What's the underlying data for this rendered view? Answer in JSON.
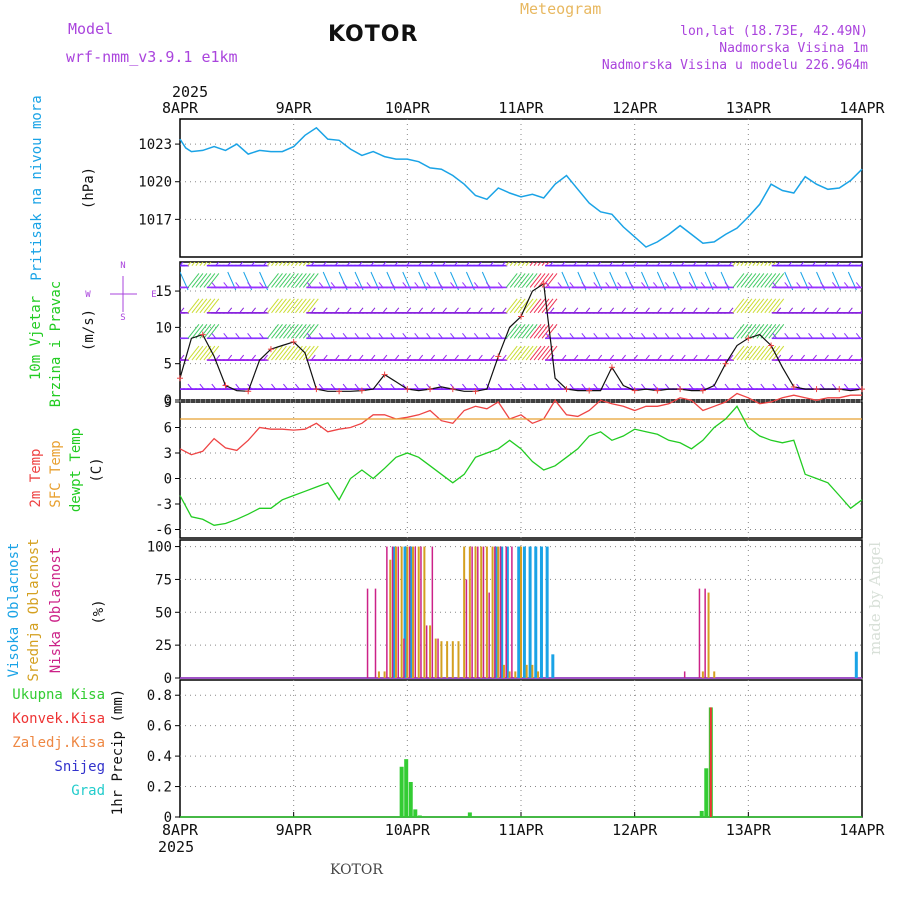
{
  "header": {
    "model_label": "Model",
    "model_name": "wrf-nmm_v3.9.1 e1km",
    "title": "KOTOR",
    "subtitle": "Meteogram",
    "coords": "lon,lat (18.73E, 42.49N)",
    "elev": "Nadmorska Visina 1m",
    "elev_model": "Nadmorska Visina u modelu 226.964m",
    "watermark": "made by Angel",
    "footer": "KOTOR",
    "year": "2025"
  },
  "colors": {
    "pressure": "#1aa3e6",
    "wind_label": "#22cc22",
    "t2m": "#ee4444",
    "tsfc": "#e8a030",
    "tdew": "#22cc22",
    "cloud_high": "#1aa3e6",
    "cloud_mid": "#d4a020",
    "cloud_low": "#cc2288",
    "precip_total": "#33cc33",
    "precip_conv": "#ee3333",
    "precip_frz": "#ee8844",
    "precip_snow": "#3333cc",
    "precip_grad": "#22cccc",
    "header_purple": "#aa44dd"
  },
  "chart_data": [
    {
      "type": "line",
      "name": "pressure",
      "ylabel": [
        "Pritisak na nivou mora",
        "(hPa)"
      ],
      "x_unit": "days since 8APR 00Z",
      "ylim": [
        1014,
        1025
      ],
      "yticks": [
        1017,
        1020,
        1023
      ],
      "x": [
        0,
        0.05,
        0.1,
        0.2,
        0.3,
        0.4,
        0.5,
        0.6,
        0.7,
        0.8,
        0.9,
        1.0,
        1.1,
        1.2,
        1.3,
        1.4,
        1.5,
        1.6,
        1.7,
        1.8,
        1.9,
        2.0,
        2.1,
        2.2,
        2.3,
        2.4,
        2.5,
        2.6,
        2.7,
        2.8,
        2.9,
        3.0,
        3.1,
        3.2,
        3.3,
        3.4,
        3.5,
        3.6,
        3.7,
        3.8,
        3.9,
        4.0,
        4.1,
        4.2,
        4.3,
        4.4,
        4.5,
        4.6,
        4.7,
        4.8,
        4.9,
        5.0,
        5.1,
        5.2,
        5.3,
        5.4,
        5.5,
        5.6,
        5.7,
        5.8,
        5.9,
        6.0
      ],
      "values": [
        1023.4,
        1022.7,
        1022.4,
        1022.5,
        1022.8,
        1022.5,
        1023.0,
        1022.2,
        1022.5,
        1022.4,
        1022.4,
        1022.8,
        1023.7,
        1024.3,
        1023.4,
        1023.3,
        1022.6,
        1022.1,
        1022.4,
        1022.0,
        1021.8,
        1021.8,
        1021.6,
        1021.1,
        1021.0,
        1020.5,
        1019.8,
        1018.9,
        1018.6,
        1019.5,
        1019.1,
        1018.8,
        1019.0,
        1018.7,
        1019.8,
        1020.5,
        1019.4,
        1018.3,
        1017.6,
        1017.4,
        1016.4,
        1015.6,
        1014.8,
        1015.2,
        1015.8,
        1016.5,
        1015.8,
        1015.1,
        1015.2,
        1015.8,
        1016.3,
        1017.2,
        1018.2,
        1019.8,
        1019.3,
        1019.1,
        1020.4,
        1019.8,
        1019.4,
        1019.5,
        1020.1,
        1021.0
      ]
    },
    {
      "type": "line",
      "name": "wind",
      "ylabel": [
        "10m Vjetar",
        "Brzina i Pravac",
        "(m/s)"
      ],
      "compass": [
        "N",
        "S",
        "W",
        "E"
      ],
      "x_unit": "days since 8APR 00Z",
      "ylim": [
        0,
        19
      ],
      "yticks": [
        0,
        5,
        10,
        15
      ],
      "x": [
        0,
        0.1,
        0.2,
        0.3,
        0.4,
        0.5,
        0.6,
        0.7,
        0.8,
        0.9,
        1.0,
        1.1,
        1.2,
        1.3,
        1.4,
        1.5,
        1.6,
        1.7,
        1.8,
        1.9,
        2.0,
        2.1,
        2.2,
        2.3,
        2.4,
        2.5,
        2.6,
        2.7,
        2.8,
        2.9,
        3.0,
        3.1,
        3.2,
        3.3,
        3.4,
        3.5,
        3.6,
        3.7,
        3.8,
        3.9,
        4.0,
        4.1,
        4.2,
        4.3,
        4.4,
        4.5,
        4.6,
        4.7,
        4.8,
        4.9,
        5.0,
        5.1,
        5.2,
        5.3,
        5.4,
        5.5,
        5.6,
        5.7,
        5.8,
        5.9,
        6.0
      ],
      "values": [
        3.0,
        8.5,
        9.0,
        6.0,
        2.0,
        1.3,
        1.2,
        5.5,
        7.0,
        7.5,
        8.0,
        6.5,
        1.5,
        1.2,
        1.2,
        1.2,
        1.3,
        1.5,
        3.5,
        2.5,
        1.5,
        1.3,
        1.5,
        1.8,
        1.5,
        1.2,
        1.2,
        1.5,
        6.0,
        10.0,
        11.5,
        15.0,
        16.0,
        3.0,
        1.5,
        1.3,
        1.3,
        1.3,
        4.5,
        2.0,
        1.3,
        1.5,
        1.3,
        1.5,
        1.5,
        1.3,
        1.3,
        2.0,
        5.0,
        7.5,
        8.5,
        9.0,
        7.5,
        4.5,
        1.8,
        1.5,
        1.5,
        1.5,
        1.5,
        1.3,
        1.5
      ]
    },
    {
      "type": "line",
      "name": "temperature",
      "ylabel": [
        "2m Temp",
        "SFC Temp",
        "dewpt Temp",
        "(C)"
      ],
      "x_unit": "days since 8APR 00Z",
      "ylim": [
        -7,
        9
      ],
      "yticks": [
        -6,
        -3,
        0,
        3,
        6,
        9
      ],
      "x": [
        0,
        0.1,
        0.2,
        0.3,
        0.4,
        0.5,
        0.6,
        0.7,
        0.8,
        0.9,
        1.0,
        1.1,
        1.2,
        1.3,
        1.4,
        1.5,
        1.6,
        1.7,
        1.8,
        1.9,
        2.0,
        2.1,
        2.2,
        2.3,
        2.4,
        2.5,
        2.6,
        2.7,
        2.8,
        2.9,
        3.0,
        3.1,
        3.2,
        3.3,
        3.4,
        3.5,
        3.6,
        3.7,
        3.8,
        3.9,
        4.0,
        4.1,
        4.2,
        4.3,
        4.4,
        4.5,
        4.6,
        4.7,
        4.8,
        4.9,
        5.0,
        5.1,
        5.2,
        5.3,
        5.4,
        5.5,
        5.6,
        5.7,
        5.8,
        5.9,
        6.0
      ],
      "series": [
        {
          "name": "2m Temp",
          "values": [
            3.5,
            2.8,
            3.2,
            4.7,
            3.6,
            3.3,
            4.5,
            6.0,
            5.8,
            5.8,
            5.7,
            5.8,
            6.5,
            5.5,
            5.8,
            6.0,
            6.5,
            7.5,
            7.5,
            7.0,
            7.2,
            7.5,
            8.0,
            6.8,
            6.5,
            8.0,
            8.5,
            8.2,
            9.0,
            7.0,
            7.5,
            6.5,
            7.0,
            9.2,
            7.5,
            7.3,
            8.0,
            9.2,
            8.8,
            8.5,
            8.0,
            8.5,
            8.5,
            8.8,
            9.5,
            9.2,
            8.0,
            8.5,
            9.0,
            10.0,
            9.5,
            8.8,
            9.0,
            9.5,
            9.8,
            9.5,
            9.2,
            9.5,
            9.5,
            9.8,
            9.8
          ]
        },
        {
          "name": "SFC Temp",
          "values": [
            7.0,
            7.0,
            7.0,
            7.0,
            7.0,
            7.0,
            7.0,
            7.0,
            7.0,
            7.0,
            7.0,
            7.0,
            7.0,
            7.0,
            7.0,
            7.0,
            7.0,
            7.0,
            7.0,
            7.0,
            7.0,
            7.0,
            7.0,
            7.0,
            7.0,
            7.0,
            7.0,
            7.0,
            7.0,
            7.0,
            7.0,
            7.0,
            7.0,
            7.0,
            7.0,
            7.0,
            7.0,
            7.0,
            7.0,
            7.0,
            7.0,
            7.0,
            7.0,
            7.0,
            7.0,
            7.0,
            7.0,
            7.0,
            7.0,
            7.0,
            7.0,
            7.0,
            7.0,
            7.0,
            7.0,
            7.0,
            7.0,
            7.0,
            7.0,
            7.0,
            7.0
          ]
        },
        {
          "name": "dewpt Temp",
          "values": [
            -2.0,
            -4.5,
            -4.8,
            -5.5,
            -5.3,
            -4.8,
            -4.2,
            -3.5,
            -3.5,
            -2.5,
            -2.0,
            -1.5,
            -1.0,
            -0.5,
            -2.5,
            0.0,
            1.0,
            0.0,
            1.2,
            2.5,
            3.0,
            2.5,
            1.5,
            0.5,
            -0.5,
            0.5,
            2.5,
            3.0,
            3.5,
            4.5,
            3.5,
            2.0,
            1.0,
            1.5,
            2.5,
            3.5,
            5.0,
            5.5,
            4.5,
            5.0,
            5.8,
            5.5,
            5.2,
            4.5,
            4.2,
            3.5,
            4.5,
            6.0,
            7.0,
            8.5,
            6.0,
            5.0,
            4.5,
            4.2,
            4.5,
            0.5,
            0.0,
            -0.5,
            -2.0,
            -3.5,
            -2.5
          ]
        }
      ]
    },
    {
      "type": "bar",
      "name": "clouds",
      "ylabel": [
        "Visoka Oblacnost",
        "Srednja Oblacnost",
        "Niska Oblacnost",
        "(%)"
      ],
      "x_unit": "days since 8APR 00Z",
      "ylim": [
        0,
        105
      ],
      "yticks": [
        0,
        25,
        50,
        75,
        100
      ],
      "series": [
        {
          "name": "Visoka Oblacnost",
          "x": [
            1.73,
            1.78,
            1.83,
            1.88,
            1.98,
            2.03,
            2.28,
            2.43,
            2.48,
            2.58,
            2.63,
            2.68,
            2.73,
            2.78,
            2.83,
            2.88,
            2.93,
            2.98,
            3.03,
            3.08,
            3.13,
            3.18,
            3.23,
            3.28,
            5.95
          ],
          "values": [
            0,
            0,
            0,
            100,
            100,
            100,
            0,
            0,
            0,
            0,
            0,
            0,
            0,
            100,
            100,
            100,
            0,
            100,
            100,
            100,
            100,
            100,
            100,
            18,
            20
          ]
        },
        {
          "name": "Srednja Oblacnost",
          "x": [
            1.75,
            1.8,
            1.85,
            1.9,
            1.95,
            2.0,
            2.05,
            2.1,
            2.15,
            2.2,
            2.25,
            2.3,
            2.35,
            2.4,
            2.45,
            2.5,
            2.55,
            2.6,
            2.65,
            2.7,
            2.75,
            2.8,
            2.85,
            2.9,
            2.95,
            3.0,
            3.05,
            3.1,
            3.15,
            4.6,
            4.65,
            4.7
          ],
          "values": [
            5,
            5,
            90,
            100,
            100,
            100,
            100,
            100,
            100,
            40,
            30,
            28,
            28,
            28,
            28,
            100,
            100,
            100,
            100,
            100,
            100,
            100,
            10,
            5,
            5,
            100,
            10,
            10,
            5,
            5,
            65,
            5
          ]
        },
        {
          "name": "Niska Oblacnost",
          "x": [
            1.65,
            1.72,
            1.77,
            1.82,
            1.87,
            1.92,
            1.97,
            2.02,
            2.07,
            2.12,
            2.17,
            2.22,
            2.27,
            2.32,
            2.37,
            2.42,
            2.47,
            2.52,
            2.57,
            2.62,
            2.67,
            2.72,
            2.77,
            2.82,
            2.87,
            2.92,
            4.44,
            4.57,
            4.62,
            4.67
          ],
          "values": [
            68,
            68,
            0,
            100,
            100,
            100,
            30,
            100,
            100,
            100,
            40,
            100,
            30,
            0,
            0,
            0,
            0,
            75,
            100,
            100,
            100,
            65,
            100,
            100,
            100,
            100,
            5,
            68,
            68,
            0
          ]
        }
      ]
    },
    {
      "type": "bar",
      "name": "precipitation",
      "ylabel": [
        "1hr Precip (mm)"
      ],
      "legend": [
        "Ukupna Kisa",
        "Konvek.Kisa",
        "Zaledj.Kisa",
        "Snijeg",
        "Grad"
      ],
      "x_unit": "days since 8APR 00Z",
      "ylim": [
        0,
        0.9
      ],
      "yticks": [
        0,
        0.2,
        0.4,
        0.6,
        0.8
      ],
      "series": [
        {
          "name": "Ukupna Kisa",
          "x": [
            1.95,
            1.99,
            2.03,
            2.07,
            2.11,
            2.55,
            4.59,
            4.63,
            4.67
          ],
          "values": [
            0.33,
            0.38,
            0.23,
            0.05,
            0.01,
            0.03,
            0.04,
            0.32,
            0.72
          ]
        },
        {
          "name": "Konvek.Kisa",
          "x": [
            4.67
          ],
          "values": [
            0.72
          ]
        }
      ]
    }
  ],
  "x_axis": {
    "tick_labels": [
      "8APR",
      "9APR",
      "10APR",
      "11APR",
      "12APR",
      "13APR",
      "14APR"
    ],
    "xlim": [
      0,
      6
    ]
  }
}
